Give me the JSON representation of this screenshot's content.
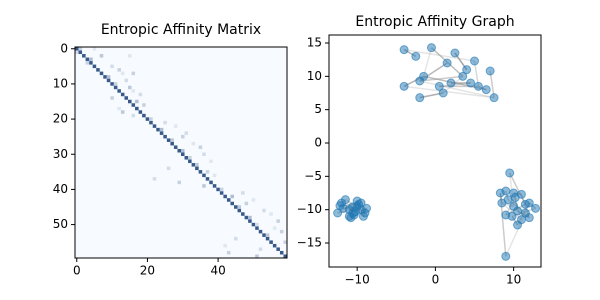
{
  "chart_data": [
    {
      "type": "heatmap",
      "title": "Entropic Affinity Matrix",
      "xlim": [
        -0.5,
        59.5
      ],
      "ylim": [
        59.5,
        -0.5
      ],
      "xticks": [
        0,
        20,
        40
      ],
      "yticks": [
        0,
        10,
        20,
        30,
        40,
        50
      ],
      "cmap": [
        "#f7fbff",
        "#08306b"
      ],
      "vlim": [
        0,
        1
      ],
      "cells": [
        [
          0,
          0,
          0.8
        ],
        [
          1,
          1,
          0.8
        ],
        [
          2,
          2,
          0.8
        ],
        [
          3,
          3,
          0.8
        ],
        [
          4,
          4,
          0.8
        ],
        [
          5,
          5,
          0.8
        ],
        [
          6,
          6,
          0.8
        ],
        [
          7,
          7,
          0.8
        ],
        [
          8,
          8,
          0.8
        ],
        [
          9,
          9,
          0.8
        ],
        [
          10,
          10,
          0.8
        ],
        [
          11,
          11,
          0.8
        ],
        [
          12,
          12,
          0.8
        ],
        [
          13,
          13,
          0.8
        ],
        [
          14,
          14,
          0.8
        ],
        [
          15,
          15,
          0.8
        ],
        [
          16,
          16,
          0.8
        ],
        [
          17,
          17,
          0.8
        ],
        [
          18,
          18,
          0.8
        ],
        [
          19,
          19,
          0.8
        ],
        [
          20,
          20,
          0.8
        ],
        [
          21,
          21,
          0.8
        ],
        [
          22,
          22,
          0.8
        ],
        [
          23,
          23,
          0.8
        ],
        [
          24,
          24,
          0.8
        ],
        [
          25,
          25,
          0.8
        ],
        [
          26,
          26,
          0.8
        ],
        [
          27,
          27,
          0.8
        ],
        [
          28,
          28,
          0.8
        ],
        [
          29,
          29,
          0.8
        ],
        [
          30,
          30,
          0.8
        ],
        [
          31,
          31,
          0.8
        ],
        [
          32,
          32,
          0.8
        ],
        [
          33,
          33,
          0.8
        ],
        [
          34,
          34,
          0.8
        ],
        [
          35,
          35,
          0.8
        ],
        [
          36,
          36,
          0.8
        ],
        [
          37,
          37,
          0.8
        ],
        [
          38,
          38,
          0.8
        ],
        [
          39,
          39,
          0.8
        ],
        [
          40,
          40,
          0.8
        ],
        [
          41,
          41,
          0.8
        ],
        [
          42,
          42,
          0.8
        ],
        [
          43,
          43,
          0.8
        ],
        [
          44,
          44,
          0.8
        ],
        [
          45,
          45,
          0.8
        ],
        [
          46,
          46,
          0.8
        ],
        [
          47,
          47,
          0.8
        ],
        [
          48,
          48,
          0.8
        ],
        [
          49,
          49,
          0.8
        ],
        [
          50,
          50,
          0.8
        ],
        [
          51,
          51,
          0.8
        ],
        [
          52,
          52,
          0.8
        ],
        [
          53,
          53,
          0.8
        ],
        [
          54,
          54,
          0.8
        ],
        [
          55,
          55,
          0.8
        ],
        [
          56,
          56,
          0.8
        ],
        [
          57,
          57,
          0.8
        ],
        [
          58,
          58,
          0.8
        ],
        [
          59,
          59,
          0.8
        ],
        [
          0,
          1,
          0.2
        ],
        [
          1,
          0,
          0.15
        ],
        [
          0,
          5,
          0.1
        ],
        [
          2,
          7,
          0.25
        ],
        [
          3,
          4,
          0.3
        ],
        [
          4,
          3,
          0.2
        ],
        [
          5,
          10,
          0.15
        ],
        [
          6,
          12,
          0.2
        ],
        [
          7,
          13,
          0.1
        ],
        [
          8,
          9,
          0.3
        ],
        [
          9,
          14,
          0.15
        ],
        [
          10,
          11,
          0.2
        ],
        [
          11,
          15,
          0.25
        ],
        [
          12,
          16,
          0.1
        ],
        [
          13,
          18,
          0.15
        ],
        [
          14,
          10,
          0.2
        ],
        [
          15,
          17,
          0.3
        ],
        [
          16,
          19,
          0.2
        ],
        [
          17,
          12,
          0.1
        ],
        [
          18,
          13,
          0.25
        ],
        [
          19,
          16,
          0.15
        ],
        [
          2,
          15,
          0.1
        ],
        [
          7,
          16,
          0.2
        ],
        [
          20,
          21,
          0.2
        ],
        [
          21,
          25,
          0.15
        ],
        [
          22,
          28,
          0.1
        ],
        [
          23,
          24,
          0.3
        ],
        [
          24,
          31,
          0.15
        ],
        [
          25,
          30,
          0.2
        ],
        [
          26,
          27,
          0.25
        ],
        [
          27,
          33,
          0.1
        ],
        [
          28,
          35,
          0.2
        ],
        [
          29,
          30,
          0.3
        ],
        [
          30,
          36,
          0.15
        ],
        [
          31,
          32,
          0.2
        ],
        [
          32,
          38,
          0.1
        ],
        [
          33,
          34,
          0.25
        ],
        [
          34,
          26,
          0.15
        ],
        [
          35,
          37,
          0.2
        ],
        [
          36,
          39,
          0.1
        ],
        [
          37,
          22,
          0.15
        ],
        [
          38,
          29,
          0.2
        ],
        [
          39,
          36,
          0.25
        ],
        [
          40,
          41,
          0.2
        ],
        [
          41,
          47,
          0.15
        ],
        [
          42,
          44,
          0.3
        ],
        [
          43,
          50,
          0.1
        ],
        [
          44,
          48,
          0.2
        ],
        [
          45,
          46,
          0.25
        ],
        [
          46,
          53,
          0.15
        ],
        [
          47,
          55,
          0.1
        ],
        [
          48,
          49,
          0.3
        ],
        [
          49,
          57,
          0.2
        ],
        [
          50,
          51,
          0.15
        ],
        [
          51,
          56,
          0.1
        ],
        [
          52,
          58,
          0.2
        ],
        [
          53,
          54,
          0.25
        ],
        [
          54,
          45,
          0.15
        ],
        [
          55,
          59,
          0.2
        ],
        [
          56,
          42,
          0.1
        ],
        [
          57,
          52,
          0.15
        ],
        [
          58,
          43,
          0.2
        ],
        [
          59,
          51,
          0.25
        ]
      ]
    },
    {
      "type": "graph",
      "title": "Entropic Affinity Graph",
      "xlim": [
        -13.6,
        13.5
      ],
      "ylim": [
        -18.6,
        16.2
      ],
      "xticks": [
        {
          "value": -10,
          "label": "−10"
        },
        0,
        10
      ],
      "yticks": [
        {
          "value": -15,
          "label": "−15"
        },
        {
          "value": -10,
          "label": "−10"
        },
        {
          "value": -5,
          "label": "−5"
        },
        0,
        5,
        10,
        15
      ],
      "color": "#1f77b4",
      "edge_color": "#999999",
      "x": [
        -4,
        -2.5,
        -0.5,
        2.5,
        4,
        5,
        7,
        3.5,
        2,
        4.5,
        5.5,
        6.5,
        7.5,
        1,
        0.5,
        -1.5,
        -2,
        -4,
        -2,
        1.5,
        -12,
        -11.5,
        -12.5,
        -11,
        -10.5,
        -10,
        -9.5,
        -9,
        -10,
        -9.8,
        -11,
        -10.2,
        -9.5,
        -11.8,
        -10.6,
        -9.2,
        -10.8,
        -8.8,
        -12.2,
        -10.4,
        9,
        9.3,
        10,
        9.5,
        11,
        12,
        12.8,
        11.5,
        12,
        10.5,
        10,
        8.5,
        9,
        9.8,
        10.5,
        9,
        11,
        10.2,
        11.5,
        8.3
      ],
      "y": [
        14,
        13,
        14.3,
        13.5,
        11,
        12.3,
        10.8,
        10,
        9,
        9,
        8.5,
        8,
        6.8,
        7.5,
        8.5,
        10,
        9.3,
        8.5,
        6.8,
        12,
        -9,
        -8.5,
        -10.5,
        -11,
        -10.5,
        -9.5,
        -10,
        -10.5,
        -8.7,
        -9.2,
        -10,
        -10.3,
        -9,
        -9.8,
        -9.6,
        -11,
        -11.2,
        -9.8,
        -9.4,
        -10.8,
        -7.2,
        -8.5,
        -7.5,
        -4.5,
        -7.7,
        -9,
        -9.8,
        -10.5,
        -11.2,
        -10.2,
        -9.5,
        -9,
        -10.8,
        -11,
        -12.3,
        -17,
        -11.5,
        -8.2,
        -9.2,
        -7.5
      ]
    }
  ]
}
